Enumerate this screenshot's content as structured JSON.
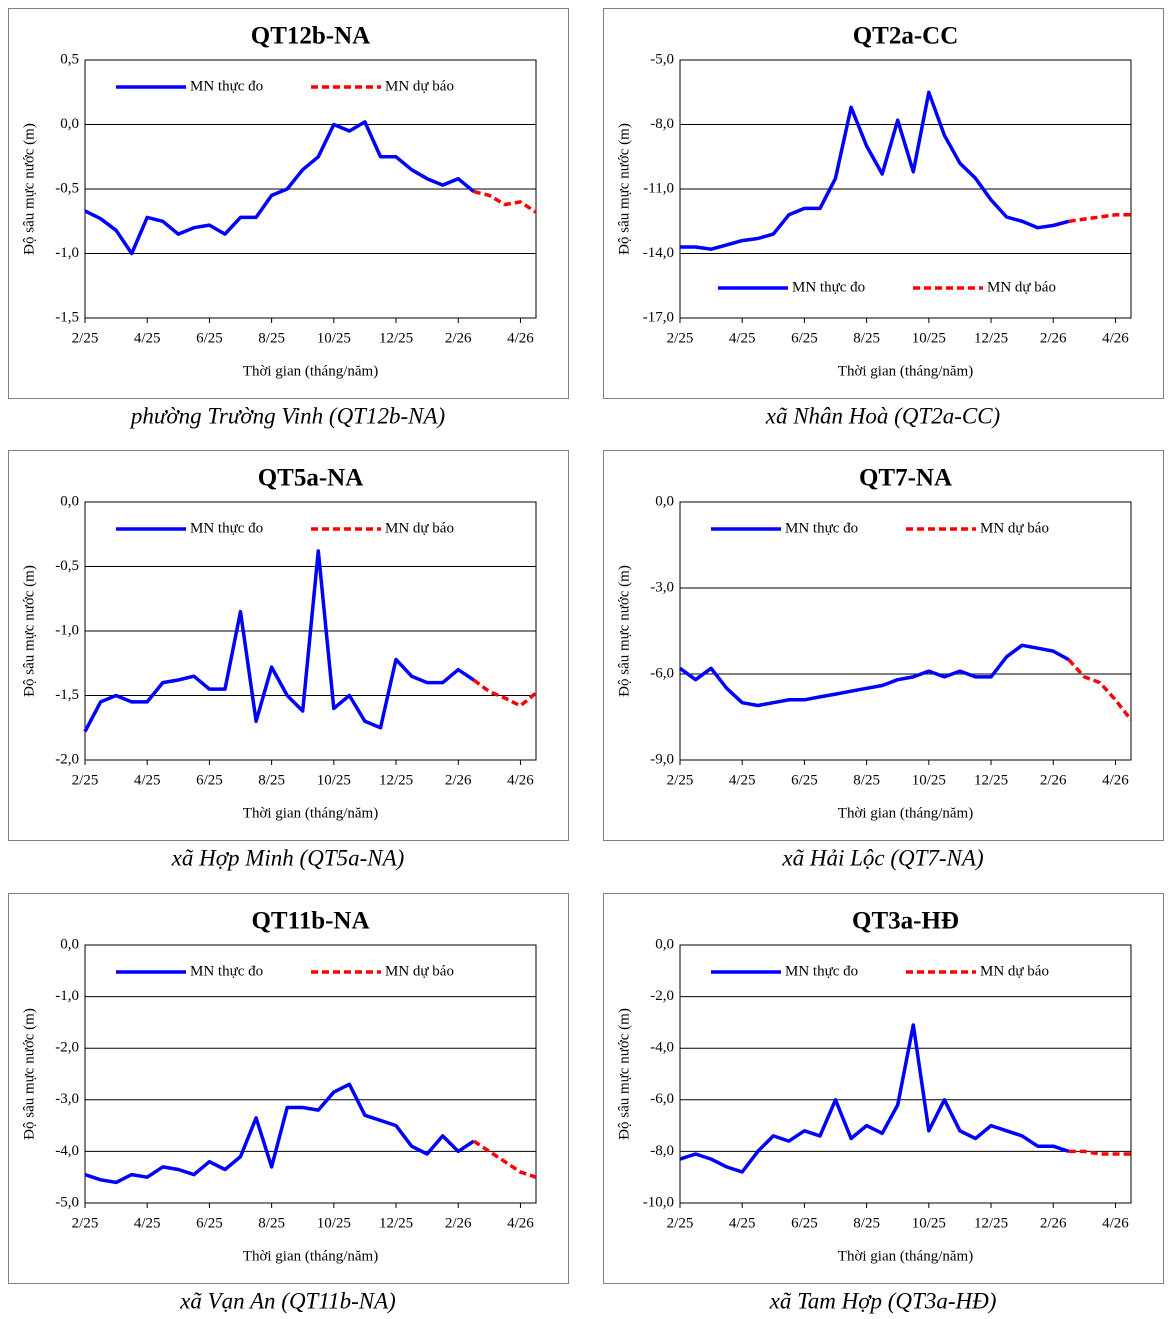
{
  "chart_data": [
    {
      "type": "line",
      "title": "QT12b-NA",
      "caption": "phường Trường Vinh (QT12b-NA)",
      "x_label": "Thời gian (tháng/năm)",
      "y_label": "Độ sâu mực nước (m)",
      "legend": "top",
      "grid": true,
      "categories": [
        "2/25",
        null,
        null,
        null,
        "4/25",
        null,
        null,
        null,
        "6/25",
        null,
        null,
        null,
        "8/25",
        null,
        null,
        null,
        "10/25",
        null,
        null,
        null,
        "12/25",
        null,
        null,
        null,
        "2/26",
        null,
        null,
        null,
        "4/26",
        null
      ],
      "series": [
        {
          "name": "MN thực đo",
          "color": "#0000ff",
          "values": [
            -0.67,
            -0.73,
            -0.82,
            -1.0,
            -0.72,
            -0.75,
            -0.85,
            -0.8,
            -0.78,
            -0.85,
            -0.72,
            -0.72,
            -0.55,
            -0.5,
            -0.35,
            -0.25,
            0.0,
            -0.05,
            0.02,
            -0.25,
            -0.25,
            -0.35,
            -0.42,
            -0.47,
            -0.42,
            -0.52,
            null,
            null,
            null,
            null
          ]
        },
        {
          "name": "MN dự báo",
          "color": "#ff0000",
          "values": [
            null,
            null,
            null,
            null,
            null,
            null,
            null,
            null,
            null,
            null,
            null,
            null,
            null,
            null,
            null,
            null,
            null,
            null,
            null,
            null,
            null,
            null,
            null,
            null,
            null,
            -0.52,
            -0.55,
            -0.62,
            -0.6,
            -0.68
          ]
        }
      ],
      "ylim": [
        -1.5,
        0.5
      ],
      "yticks": [
        {
          "value": -1.5,
          "label": "-1,5"
        },
        {
          "value": -1,
          "label": "-1,0"
        },
        {
          "value": -0.5,
          "label": "-0,5"
        },
        {
          "value": 0,
          "label": "0,0"
        },
        {
          "value": 0.5,
          "label": "0,5"
        }
      ]
    },
    {
      "type": "line",
      "title": "QT2a-CC",
      "caption": "xã Nhân Hoà (QT2a-CC)",
      "x_label": "Thời gian (tháng/năm)",
      "y_label": "Độ sâu mực nước (m)",
      "legend": "bottom",
      "grid": true,
      "categories": [
        "2/25",
        null,
        null,
        null,
        "4/25",
        null,
        null,
        null,
        "6/25",
        null,
        null,
        null,
        "8/25",
        null,
        null,
        null,
        "10/25",
        null,
        null,
        null,
        "12/25",
        null,
        null,
        null,
        "2/26",
        null,
        null,
        null,
        "4/26",
        null
      ],
      "series": [
        {
          "name": "MN thực đo",
          "color": "#0000ff",
          "values": [
            -13.7,
            -13.7,
            -13.8,
            -13.6,
            -13.4,
            -13.3,
            -13.1,
            -12.2,
            -11.9,
            -11.9,
            -10.5,
            -7.2,
            -9.0,
            -10.3,
            -7.8,
            -10.2,
            -6.5,
            -8.5,
            -9.8,
            -10.5,
            -11.5,
            -12.3,
            -12.5,
            -12.8,
            -12.7,
            -12.5,
            null,
            null,
            null,
            null
          ]
        },
        {
          "name": "MN dự báo",
          "color": "#ff0000",
          "values": [
            null,
            null,
            null,
            null,
            null,
            null,
            null,
            null,
            null,
            null,
            null,
            null,
            null,
            null,
            null,
            null,
            null,
            null,
            null,
            null,
            null,
            null,
            null,
            null,
            null,
            -12.5,
            -12.4,
            -12.3,
            -12.2,
            -12.2
          ]
        }
      ],
      "ylim": [
        -17,
        -5
      ],
      "yticks": [
        {
          "value": -17,
          "label": "-17,0"
        },
        {
          "value": -14,
          "label": "-14,0"
        },
        {
          "value": -11,
          "label": "-11,0"
        },
        {
          "value": -8,
          "label": "-8,0"
        },
        {
          "value": -5,
          "label": "-5,0"
        }
      ]
    },
    {
      "type": "line",
      "title": "QT5a-NA",
      "caption": "xã Hợp Minh (QT5a-NA)",
      "x_label": "Thời gian (tháng/năm)",
      "y_label": "Độ sâu mực nước (m)",
      "legend": "top",
      "grid": true,
      "categories": [
        "2/25",
        null,
        null,
        null,
        "4/25",
        null,
        null,
        null,
        "6/25",
        null,
        null,
        null,
        "8/25",
        null,
        null,
        null,
        "10/25",
        null,
        null,
        null,
        "12/25",
        null,
        null,
        null,
        "2/26",
        null,
        null,
        null,
        "4/26",
        null
      ],
      "series": [
        {
          "name": "MN thực đo",
          "color": "#0000ff",
          "values": [
            -1.78,
            -1.55,
            -1.5,
            -1.55,
            -1.55,
            -1.4,
            -1.38,
            -1.35,
            -1.45,
            -1.45,
            -0.85,
            -1.7,
            -1.28,
            -1.5,
            -1.62,
            -0.38,
            -1.6,
            -1.5,
            -1.7,
            -1.75,
            -1.22,
            -1.35,
            -1.4,
            -1.4,
            -1.3,
            -1.38,
            null,
            null,
            null,
            null
          ]
        },
        {
          "name": "MN dự báo",
          "color": "#ff0000",
          "values": [
            null,
            null,
            null,
            null,
            null,
            null,
            null,
            null,
            null,
            null,
            null,
            null,
            null,
            null,
            null,
            null,
            null,
            null,
            null,
            null,
            null,
            null,
            null,
            null,
            null,
            -1.38,
            -1.47,
            -1.52,
            -1.58,
            -1.48
          ]
        }
      ],
      "ylim": [
        -2,
        0
      ],
      "yticks": [
        {
          "value": -2,
          "label": "-2,0"
        },
        {
          "value": -1.5,
          "label": "-1,5"
        },
        {
          "value": -1,
          "label": "-1,0"
        },
        {
          "value": -0.5,
          "label": "-0,5"
        },
        {
          "value": 0,
          "label": "0,0"
        }
      ]
    },
    {
      "type": "line",
      "title": "QT7-NA",
      "caption": "xã Hải Lộc (QT7-NA)",
      "x_label": "Thời gian (tháng/năm)",
      "y_label": "Độ sâu mực nước (m)",
      "legend": "top",
      "grid": true,
      "categories": [
        "2/25",
        null,
        null,
        null,
        "4/25",
        null,
        null,
        null,
        "6/25",
        null,
        null,
        null,
        "8/25",
        null,
        null,
        null,
        "10/25",
        null,
        null,
        null,
        "12/25",
        null,
        null,
        null,
        "2/26",
        null,
        null,
        null,
        "4/26",
        null
      ],
      "series": [
        {
          "name": "MN thực đo",
          "color": "#0000ff",
          "values": [
            -5.8,
            -6.2,
            -5.8,
            -6.5,
            -7.0,
            -7.1,
            -7.0,
            -6.9,
            -6.9,
            -6.8,
            -6.7,
            -6.6,
            -6.5,
            -6.4,
            -6.2,
            -6.1,
            -5.9,
            -6.1,
            -5.9,
            -6.1,
            -6.1,
            -5.4,
            -5.0,
            -5.1,
            -5.2,
            -5.5,
            null,
            null,
            null,
            null
          ]
        },
        {
          "name": "MN dự báo",
          "color": "#ff0000",
          "values": [
            null,
            null,
            null,
            null,
            null,
            null,
            null,
            null,
            null,
            null,
            null,
            null,
            null,
            null,
            null,
            null,
            null,
            null,
            null,
            null,
            null,
            null,
            null,
            null,
            null,
            -5.5,
            -6.1,
            -6.3,
            -6.9,
            -7.6
          ]
        }
      ],
      "ylim": [
        -9,
        0
      ],
      "yticks": [
        {
          "value": -9,
          "label": "-9,0"
        },
        {
          "value": -6,
          "label": "-6,0"
        },
        {
          "value": -3,
          "label": "-3,0"
        },
        {
          "value": 0,
          "label": "0,0"
        }
      ]
    },
    {
      "type": "line",
      "title": "QT11b-NA",
      "caption": "xã Vạn An (QT11b-NA)",
      "x_label": "Thời gian (tháng/năm)",
      "y_label": "Độ sâu mực nước (m)",
      "legend": "top",
      "grid": true,
      "categories": [
        "2/25",
        null,
        null,
        null,
        "4/25",
        null,
        null,
        null,
        "6/25",
        null,
        null,
        null,
        "8/25",
        null,
        null,
        null,
        "10/25",
        null,
        null,
        null,
        "12/25",
        null,
        null,
        null,
        "2/26",
        null,
        null,
        null,
        "4/26",
        null
      ],
      "series": [
        {
          "name": "MN thực đo",
          "color": "#0000ff",
          "values": [
            -4.45,
            -4.55,
            -4.6,
            -4.45,
            -4.5,
            -4.3,
            -4.35,
            -4.45,
            -4.2,
            -4.35,
            -4.1,
            -3.35,
            -4.3,
            -3.15,
            -3.15,
            -3.2,
            -2.85,
            -2.7,
            -3.3,
            -3.4,
            -3.5,
            -3.9,
            -4.05,
            -3.7,
            -4.0,
            -3.8,
            null,
            null,
            null,
            null
          ]
        },
        {
          "name": "MN dự báo",
          "color": "#ff0000",
          "values": [
            null,
            null,
            null,
            null,
            null,
            null,
            null,
            null,
            null,
            null,
            null,
            null,
            null,
            null,
            null,
            null,
            null,
            null,
            null,
            null,
            null,
            null,
            null,
            null,
            null,
            -3.8,
            -4.0,
            -4.2,
            -4.4,
            -4.5
          ]
        }
      ],
      "ylim": [
        -5,
        0
      ],
      "yticks": [
        {
          "value": -5,
          "label": "-5,0"
        },
        {
          "value": -4,
          "label": "-4,0"
        },
        {
          "value": -3,
          "label": "-3,0"
        },
        {
          "value": -2,
          "label": "-2,0"
        },
        {
          "value": -1,
          "label": "-1,0"
        },
        {
          "value": 0,
          "label": "0,0"
        }
      ]
    },
    {
      "type": "line",
      "title": "QT3a-HĐ",
      "caption": "xã Tam Hợp (QT3a-HĐ)",
      "x_label": "Thời gian (tháng/năm)",
      "y_label": "Độ sâu mực nước (m)",
      "legend": "top",
      "grid": true,
      "categories": [
        "2/25",
        null,
        null,
        null,
        "4/25",
        null,
        null,
        null,
        "6/25",
        null,
        null,
        null,
        "8/25",
        null,
        null,
        null,
        "10/25",
        null,
        null,
        null,
        "12/25",
        null,
        null,
        null,
        "2/26",
        null,
        null,
        null,
        "4/26",
        null
      ],
      "series": [
        {
          "name": "MN thực đo",
          "color": "#0000ff",
          "values": [
            -8.3,
            -8.1,
            -8.3,
            -8.6,
            -8.8,
            -8.0,
            -7.4,
            -7.6,
            -7.2,
            -7.4,
            -6.0,
            -7.5,
            -7.0,
            -7.3,
            -6.2,
            -3.1,
            -7.2,
            -6.0,
            -7.2,
            -7.5,
            -7.0,
            -7.2,
            -7.4,
            -7.8,
            -7.8,
            -8.0,
            null,
            null,
            null,
            null
          ]
        },
        {
          "name": "MN dự báo",
          "color": "#ff0000",
          "values": [
            null,
            null,
            null,
            null,
            null,
            null,
            null,
            null,
            null,
            null,
            null,
            null,
            null,
            null,
            null,
            null,
            null,
            null,
            null,
            null,
            null,
            null,
            null,
            null,
            null,
            -8.0,
            -8.0,
            -8.1,
            -8.1,
            -8.1
          ]
        }
      ],
      "ylim": [
        -10,
        0
      ],
      "yticks": [
        {
          "value": -10,
          "label": "-10,0"
        },
        {
          "value": -8,
          "label": "-8,0"
        },
        {
          "value": -6,
          "label": "-6,0"
        },
        {
          "value": -4,
          "label": "-4,0"
        },
        {
          "value": -2,
          "label": "-2,0"
        },
        {
          "value": 0,
          "label": "0,0"
        }
      ]
    }
  ]
}
